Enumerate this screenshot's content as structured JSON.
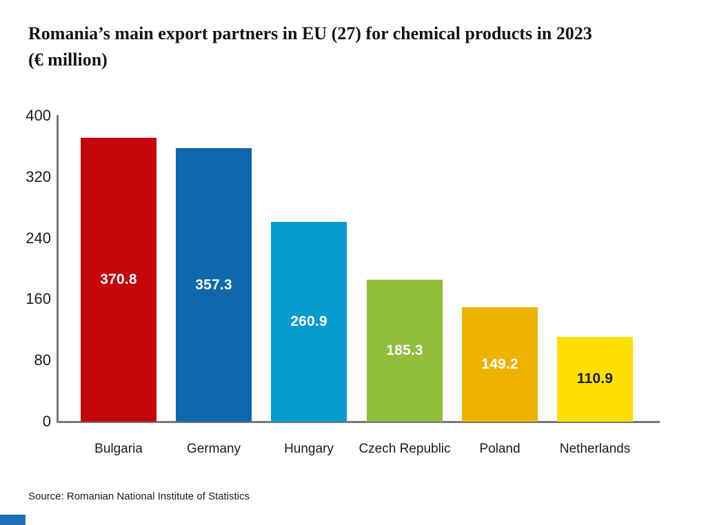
{
  "title": {
    "lines": [
      "Romania’s main export partners in EU (27) for chemical products in 2023",
      "(€ million)"
    ]
  },
  "source": "Source: Romanian National Institute of Statistics",
  "footer": {
    "accent_color": "#1d71b8"
  },
  "chart_data": {
    "type": "bar",
    "title": "Romania’s main export partners in EU (27) for chemical products in 2023 (€ million)",
    "categories": [
      "Bulgaria",
      "Germany",
      "Hungary",
      "Czech Republic",
      "Poland",
      "Netherlands"
    ],
    "values": [
      370.8,
      357.3,
      260.9,
      185.3,
      149.2,
      110.9
    ],
    "bar_colors": [
      "#c40708",
      "#0e68ab",
      "#089bce",
      "#8ebe3c",
      "#eeb200",
      "#fedf00"
    ],
    "label_colors": [
      "#ffffff",
      "#ffffff",
      "#ffffff",
      "#ffffff",
      "#ffffff",
      "#1a1a1a"
    ],
    "xlabel": "",
    "ylabel": "",
    "ylim": [
      0,
      400
    ],
    "yticks": [
      400,
      320,
      240,
      160,
      80,
      0
    ],
    "grid": false,
    "legend": "none",
    "axis_color": "#767676"
  }
}
